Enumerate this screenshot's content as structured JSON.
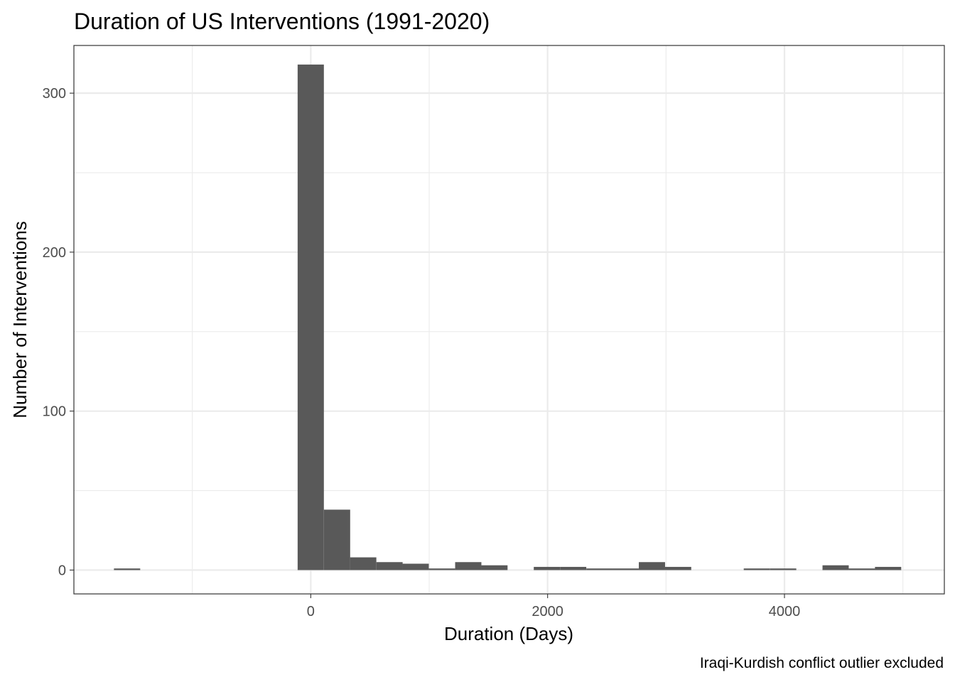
{
  "chart_data": {
    "type": "bar",
    "title": "Duration of US Interventions (1991-2020)",
    "xlabel": "Duration (Days)",
    "ylabel": "Number of Interventions",
    "caption": "Iraqi-Kurdish conflict outlier excluded",
    "bar_color": "#595959",
    "background": "#ffffff",
    "grid": true,
    "grid_color": "#ebebeb",
    "panel_border_color": "#333333",
    "xlim": [
      -2000,
      5350
    ],
    "ylim": [
      -15,
      330
    ],
    "x_ticks": [
      0,
      2000,
      4000
    ],
    "x_tick_labels": [
      "0",
      "2000",
      "4000"
    ],
    "x_minor_gridlines": [
      -1000,
      1000,
      3000,
      5000
    ],
    "y_ticks": [
      0,
      100,
      200,
      300
    ],
    "y_tick_labels": [
      "0",
      "100",
      "200",
      "300"
    ],
    "y_minor_gridlines": [
      50,
      150,
      250
    ],
    "bin_width": 221.6,
    "bins": [
      {
        "x": -1551,
        "count": 1
      },
      {
        "x": 0,
        "count": 318
      },
      {
        "x": 222,
        "count": 38
      },
      {
        "x": 443,
        "count": 8
      },
      {
        "x": 665,
        "count": 5
      },
      {
        "x": 886,
        "count": 4
      },
      {
        "x": 1108,
        "count": 1
      },
      {
        "x": 1330,
        "count": 5
      },
      {
        "x": 1551,
        "count": 3
      },
      {
        "x": 1994,
        "count": 2
      },
      {
        "x": 2216,
        "count": 2
      },
      {
        "x": 2438,
        "count": 1
      },
      {
        "x": 2659,
        "count": 1
      },
      {
        "x": 2881,
        "count": 5
      },
      {
        "x": 3102,
        "count": 2
      },
      {
        "x": 3767,
        "count": 1
      },
      {
        "x": 3989,
        "count": 1
      },
      {
        "x": 4432,
        "count": 3
      },
      {
        "x": 4654,
        "count": 1
      },
      {
        "x": 4875,
        "count": 2
      }
    ]
  }
}
